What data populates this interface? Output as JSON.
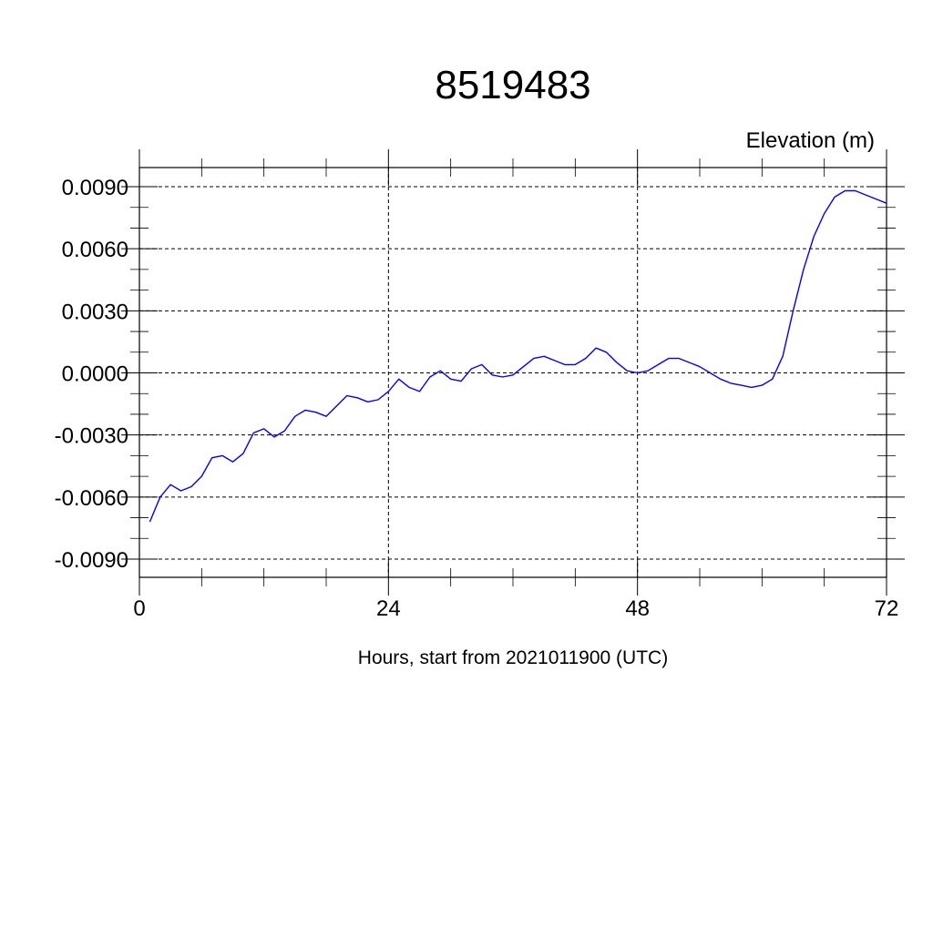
{
  "chart_data": {
    "type": "line",
    "title": "8519483",
    "unit_label": "Elevation (m)",
    "xlabel": "Hours, start from 2021011900 (UTC)",
    "xlim": [
      0,
      72
    ],
    "ylim": [
      -0.009,
      0.009
    ],
    "x_ticks": [
      0,
      24,
      48,
      72
    ],
    "x_tick_labels": [
      "0",
      "24",
      "48",
      "72"
    ],
    "y_ticks": [
      -0.009,
      -0.006,
      -0.003,
      0.0,
      0.003,
      0.006,
      0.009
    ],
    "y_tick_labels": [
      "-0.0090",
      "-0.0060",
      "-0.0030",
      "0.0000",
      "0.0030",
      "0.0060",
      "0.0090"
    ],
    "grid": true,
    "line_color": "#0000ff",
    "series": [
      {
        "x": [
          1,
          2,
          3,
          4,
          5,
          6,
          7,
          8,
          9,
          10,
          11,
          12,
          13,
          14,
          15,
          16,
          17,
          18,
          19,
          20,
          21,
          22,
          23,
          24,
          25,
          26,
          27,
          28,
          29,
          30,
          31,
          32,
          33,
          34,
          35,
          36,
          37,
          38,
          39,
          40,
          41,
          42,
          43,
          44,
          45,
          46,
          47,
          48,
          49,
          50,
          51,
          52,
          53,
          54,
          55,
          56,
          57,
          58,
          59,
          60,
          61,
          62,
          63,
          64,
          65,
          66,
          67,
          68,
          69,
          70,
          71,
          72
        ],
        "values": [
          -0.0072,
          -0.006,
          -0.0054,
          -0.0057,
          -0.0055,
          -0.005,
          -0.0041,
          -0.004,
          -0.0043,
          -0.0039,
          -0.0029,
          -0.0027,
          -0.0031,
          -0.0028,
          -0.0021,
          -0.0018,
          -0.0019,
          -0.0021,
          -0.0016,
          -0.0011,
          -0.0012,
          -0.0014,
          -0.0013,
          -0.0009,
          -0.0003,
          -0.0007,
          -0.0009,
          -0.0002,
          0.0001,
          -0.0003,
          -0.0004,
          0.0002,
          0.0004,
          -0.0001,
          -0.0002,
          -0.0001,
          0.0003,
          0.0007,
          0.0008,
          0.0006,
          0.0004,
          0.0004,
          0.0007,
          0.0012,
          0.001,
          0.0005,
          0.0001,
          0.0,
          0.0001,
          0.0004,
          0.0007,
          0.0007,
          0.0005,
          0.0003,
          0.0,
          -0.0003,
          -0.0005,
          -0.0006,
          -0.0007,
          -0.0006,
          -0.0003,
          0.0008,
          0.003,
          0.005,
          0.0066,
          0.0077,
          0.0085,
          0.0088,
          0.0088,
          0.0086,
          0.0084,
          0.0082
        ]
      }
    ]
  }
}
